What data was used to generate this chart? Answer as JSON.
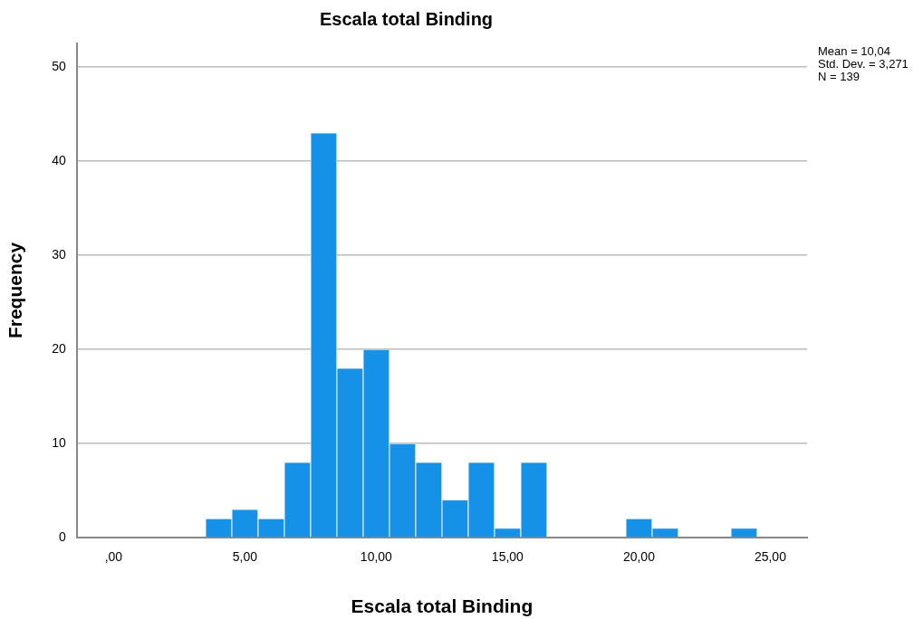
{
  "chart_data": {
    "type": "histogram",
    "title": "Escala total Binding",
    "xlabel": "Escala total Binding",
    "ylabel": "Frequency",
    "bins": [
      3.5,
      4.5,
      5.5,
      6.5,
      7.5,
      8.5,
      9.5,
      10.5,
      11.5,
      12.5,
      13.5,
      14.5,
      15.5,
      16.5,
      17.5,
      18.5,
      19.5,
      20.5,
      21.5,
      22.5,
      23.5,
      24.5
    ],
    "values": [
      2,
      3,
      2,
      8,
      43,
      18,
      20,
      10,
      8,
      4,
      8,
      1,
      8,
      0,
      0,
      0,
      2,
      1,
      0,
      0,
      1
    ],
    "color": "#1591e8",
    "xlim": [
      -1.4,
      26.4
    ],
    "xticks": [
      {
        "value": 0,
        "label": ",00"
      },
      {
        "value": 5,
        "label": "5,00"
      },
      {
        "value": 10,
        "label": "10,00"
      },
      {
        "value": 15,
        "label": "15,00"
      },
      {
        "value": 20,
        "label": "20,00"
      },
      {
        "value": 25,
        "label": "25,00"
      }
    ],
    "ylim": [
      0,
      52.5
    ],
    "yticks": [
      0,
      10,
      20,
      30,
      40,
      50
    ],
    "grid": "y",
    "legend": false,
    "annotations": [
      "Mean = 10,04",
      "Std. Dev. = 3,271",
      "N = 139"
    ]
  }
}
